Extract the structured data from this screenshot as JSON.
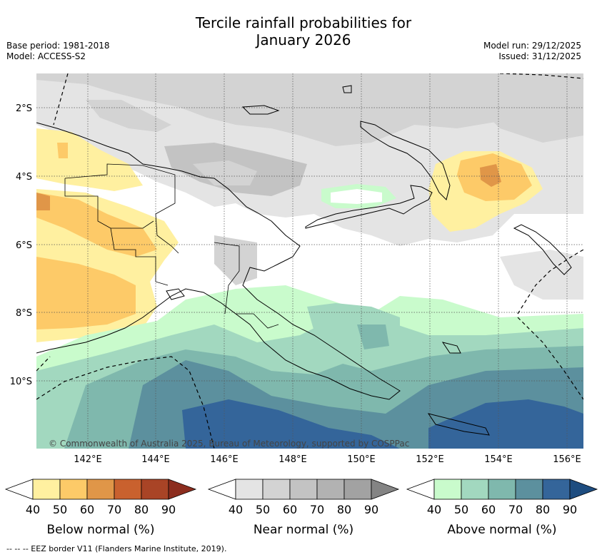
{
  "title_line1": "Tercile rainfall probabilities for",
  "title_line2": "January 2026",
  "base_period": "Base period: 1981-2018",
  "model": "Model: ACCESS-S2",
  "model_run": "Model run: 29/12/2025",
  "issued": "Issued: 31/12/2025",
  "copyright": "© Commonwealth of Australia 2025, Bureau of Meteorology, supported by COSPPac",
  "lat_labels": [
    "2°S",
    "4°S",
    "6°S",
    "8°S",
    "10°S"
  ],
  "lon_labels": [
    "142°E",
    "144°E",
    "146°E",
    "148°E",
    "150°E",
    "152°E",
    "154°E",
    "156°E"
  ],
  "colorbars": [
    {
      "title": "Below normal (%)",
      "ticks": [
        "40",
        "50",
        "60",
        "70",
        "80",
        "90"
      ],
      "colors": [
        "#fff0a0",
        "#fdca68",
        "#e09648",
        "#c9612e",
        "#a94426",
        "#8c2d1e"
      ]
    },
    {
      "title": "Near normal (%)",
      "ticks": [
        "40",
        "50",
        "60",
        "70",
        "80",
        "90"
      ],
      "colors": [
        "#e4e4e4",
        "#d3d3d3",
        "#c3c3c3",
        "#b2b2b2",
        "#a2a2a2",
        "#848484"
      ]
    },
    {
      "title": "Above normal (%)",
      "ticks": [
        "40",
        "50",
        "60",
        "70",
        "80",
        "90"
      ],
      "colors": [
        "#c9fbcc",
        "#a2d8bf",
        "#7fb8ad",
        "#5c909e",
        "#34659a",
        "#1e4d80"
      ]
    }
  ],
  "footer": "-- -- -- EEZ border V11 (Flanders Marine Institute, 2019)."
}
